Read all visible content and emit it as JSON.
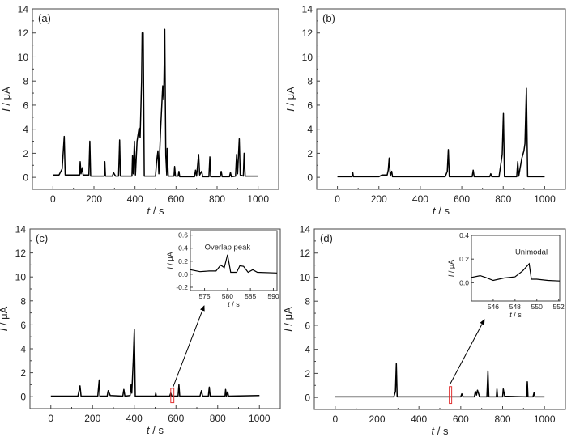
{
  "chart_data": [
    {
      "type": "line",
      "panel_label": "(a)",
      "xlabel_italic": "t",
      "xlabel_unit": " / s",
      "ylabel_italic": "I",
      "ylabel_unit": " / μA",
      "xlim": [
        -100,
        1100
      ],
      "ylim": [
        -1,
        14
      ],
      "xticks": [
        0,
        200,
        400,
        600,
        800,
        1000
      ],
      "yticks": [
        0,
        2,
        4,
        6,
        8,
        10,
        12,
        14
      ],
      "grid": false,
      "series": [
        {
          "color": "#000000",
          "points": [
            [
              0,
              0.2
            ],
            [
              30,
              0.2
            ],
            [
              45,
              0.7
            ],
            [
              55,
              3.4
            ],
            [
              60,
              0.2
            ],
            [
              130,
              0.2
            ],
            [
              133,
              1.3
            ],
            [
              137,
              0.3
            ],
            [
              143,
              0.8
            ],
            [
              147,
              0.2
            ],
            [
              175,
              0.2
            ],
            [
              180,
              3.0
            ],
            [
              184,
              0.1
            ],
            [
              250,
              0.1
            ],
            [
              253,
              1.3
            ],
            [
              256,
              0.1
            ],
            [
              290,
              0.1
            ],
            [
              295,
              0.4
            ],
            [
              305,
              0.1
            ],
            [
              320,
              0.1
            ],
            [
              325,
              3.1
            ],
            [
              329,
              0.1
            ],
            [
              385,
              0.1
            ],
            [
              388,
              1.8
            ],
            [
              392,
              0.3
            ],
            [
              397,
              3.0
            ],
            [
              402,
              0.2
            ],
            [
              410,
              3.0
            ],
            [
              420,
              4.1
            ],
            [
              425,
              3.3
            ],
            [
              432,
              8
            ],
            [
              435,
              12
            ],
            [
              440,
              12
            ],
            [
              445,
              0.1
            ],
            [
              500,
              0.1
            ],
            [
              505,
              1.3
            ],
            [
              512,
              2.2
            ],
            [
              516,
              0.3
            ],
            [
              525,
              4
            ],
            [
              535,
              7.6
            ],
            [
              540,
              6.5
            ],
            [
              545,
              12.3
            ],
            [
              550,
              1.8
            ],
            [
              555,
              0.2
            ],
            [
              557,
              2.4
            ],
            [
              562,
              0.1
            ],
            [
              590,
              0.1
            ],
            [
              593,
              0.9
            ],
            [
              597,
              0.1
            ],
            [
              610,
              0.1
            ],
            [
              614,
              0.5
            ],
            [
              618,
              0.05
            ],
            [
              690,
              0.05
            ],
            [
              695,
              0.6
            ],
            [
              700,
              0.1
            ],
            [
              710,
              1.9
            ],
            [
              715,
              0.2
            ],
            [
              725,
              0.5
            ],
            [
              730,
              0.05
            ],
            [
              760,
              0.05
            ],
            [
              765,
              1.7
            ],
            [
              769,
              0.05
            ],
            [
              815,
              0.05
            ],
            [
              820,
              0.5
            ],
            [
              825,
              0.05
            ],
            [
              860,
              0.05
            ],
            [
              865,
              0.4
            ],
            [
              870,
              0.05
            ],
            [
              890,
              0.1
            ],
            [
              895,
              1.9
            ],
            [
              900,
              0.3
            ],
            [
              908,
              3.2
            ],
            [
              913,
              0.2
            ],
            [
              928,
              0.1
            ],
            [
              932,
              2.0
            ],
            [
              937,
              0.1
            ],
            [
              1000,
              0.1
            ]
          ]
        }
      ]
    },
    {
      "type": "line",
      "panel_label": "(b)",
      "xlabel_italic": "t",
      "xlabel_unit": " / s",
      "ylabel_italic": "I",
      "ylabel_unit": " / μA",
      "xlim": [
        -100,
        1100
      ],
      "ylim": [
        -1,
        14
      ],
      "xticks": [
        0,
        200,
        400,
        600,
        800,
        1000
      ],
      "yticks": [
        0,
        2,
        4,
        6,
        8,
        10,
        12,
        14
      ],
      "grid": false,
      "series": [
        {
          "color": "#000000",
          "points": [
            [
              0,
              0.05
            ],
            [
              70,
              0.05
            ],
            [
              74,
              0.4
            ],
            [
              77,
              0.05
            ],
            [
              200,
              0.05
            ],
            [
              215,
              0.2
            ],
            [
              240,
              0.2
            ],
            [
              245,
              0.6
            ],
            [
              250,
              1.6
            ],
            [
              255,
              0.1
            ],
            [
              262,
              0.5
            ],
            [
              266,
              0.05
            ],
            [
              520,
              0.05
            ],
            [
              530,
              0.5
            ],
            [
              535,
              2.3
            ],
            [
              540,
              0.05
            ],
            [
              650,
              0.05
            ],
            [
              655,
              0.6
            ],
            [
              660,
              0.05
            ],
            [
              735,
              0.05
            ],
            [
              740,
              0.3
            ],
            [
              745,
              0.05
            ],
            [
              780,
              0.05
            ],
            [
              795,
              1.9
            ],
            [
              801,
              5.3
            ],
            [
              806,
              0.05
            ],
            [
              865,
              0.05
            ],
            [
              870,
              1.3
            ],
            [
              875,
              0.1
            ],
            [
              890,
              1.6
            ],
            [
              900,
              2.2
            ],
            [
              905,
              2.8
            ],
            [
              912,
              7.4
            ],
            [
              918,
              0.05
            ],
            [
              1000,
              0.05
            ]
          ]
        }
      ]
    },
    {
      "type": "line",
      "panel_label": "(c)",
      "xlabel_italic": "t",
      "xlabel_unit": " / s",
      "ylabel_italic": "I",
      "ylabel_unit": " / μA",
      "xlim": [
        -100,
        1100
      ],
      "ylim": [
        -1,
        14
      ],
      "xticks": [
        0,
        200,
        400,
        600,
        800,
        1000
      ],
      "yticks": [
        0,
        2,
        4,
        6,
        8,
        10,
        12,
        14
      ],
      "grid": false,
      "series": [
        {
          "color": "#000000",
          "points": [
            [
              0,
              0.05
            ],
            [
              130,
              0.05
            ],
            [
              140,
              0.9
            ],
            [
              145,
              0.05
            ],
            [
              225,
              0.05
            ],
            [
              232,
              1.4
            ],
            [
              235,
              0.05
            ],
            [
              270,
              0.05
            ],
            [
              275,
              0.5
            ],
            [
              285,
              0.1
            ],
            [
              345,
              0.05
            ],
            [
              350,
              0.6
            ],
            [
              355,
              0.05
            ],
            [
              380,
              0.1
            ],
            [
              385,
              1.0
            ],
            [
              388,
              0.3
            ],
            [
              395,
              3
            ],
            [
              400,
              5.6
            ],
            [
              405,
              0.05
            ],
            [
              500,
              0.05
            ],
            [
              503,
              0.3
            ],
            [
              506,
              0.05
            ],
            [
              570,
              0.05
            ],
            [
              575,
              0.3
            ],
            [
              580,
              0.05
            ],
            [
              610,
              0.05
            ],
            [
              614,
              1.0
            ],
            [
              618,
              0.05
            ],
            [
              715,
              0.05
            ],
            [
              722,
              0.5
            ],
            [
              728,
              0.05
            ],
            [
              755,
              0.05
            ],
            [
              760,
              0.8
            ],
            [
              764,
              0.05
            ],
            [
              835,
              0.05
            ],
            [
              838,
              0.6
            ],
            [
              842,
              0.05
            ],
            [
              848,
              0.4
            ],
            [
              852,
              0.05
            ],
            [
              1000,
              0.1
            ]
          ]
        }
      ],
      "highlight_box": {
        "x": [
          575,
          590
        ],
        "y": [
          -0.5,
          0.7
        ],
        "color": "#e03030"
      },
      "inset": {
        "annotation": "Overlap peak",
        "annotation_at": [
          580,
          0.38
        ],
        "xlim": [
          571.9,
          590.8
        ],
        "ylim": [
          -0.25,
          0.67
        ],
        "xticks": [
          575,
          580,
          585,
          590
        ],
        "yticks": [
          -0.2,
          0.0,
          0.2,
          0.4,
          0.6
        ],
        "ytick_labels": [
          "-0.2",
          "0.0",
          "0.2",
          "0.4",
          "0.6"
        ],
        "points": [
          [
            571.9,
            0.07
          ],
          [
            574,
            0.04
          ],
          [
            576,
            0.05
          ],
          [
            577.5,
            0.05
          ],
          [
            578.5,
            0.14
          ],
          [
            579.3,
            0.1
          ],
          [
            580,
            0.3
          ],
          [
            580.7,
            0.03
          ],
          [
            582,
            0.03
          ],
          [
            582.7,
            0.13
          ],
          [
            583.5,
            0.12
          ],
          [
            584.5,
            0.03
          ],
          [
            585.5,
            0.07
          ],
          [
            586.5,
            0.03
          ],
          [
            590.8,
            0.02
          ]
        ]
      }
    },
    {
      "type": "line",
      "panel_label": "(d)",
      "xlabel_italic": "t",
      "xlabel_unit": " / s",
      "ylabel_italic": "I",
      "ylabel_unit": " / μA",
      "xlim": [
        -100,
        1100
      ],
      "ylim": [
        -1,
        14
      ],
      "xticks": [
        0,
        200,
        400,
        600,
        800,
        1000
      ],
      "yticks": [
        0,
        2,
        4,
        6,
        8,
        10,
        12,
        14
      ],
      "grid": false,
      "series": [
        {
          "color": "#000000",
          "points": [
            [
              0,
              0.05
            ],
            [
              280,
              0.05
            ],
            [
              288,
              0.5
            ],
            [
              292,
              2.8
            ],
            [
              296,
              0.05
            ],
            [
              600,
              0.05
            ],
            [
              605,
              0.3
            ],
            [
              612,
              0.05
            ],
            [
              665,
              0.05
            ],
            [
              670,
              0.5
            ],
            [
              675,
              0.2
            ],
            [
              680,
              0.6
            ],
            [
              690,
              0.05
            ],
            [
              725,
              0.05
            ],
            [
              730,
              2.2
            ],
            [
              734,
              0.05
            ],
            [
              770,
              0.05
            ],
            [
              773,
              0.7
            ],
            [
              776,
              0.05
            ],
            [
              800,
              0.05
            ],
            [
              803,
              0.7
            ],
            [
              810,
              0.1
            ],
            [
              915,
              0.05
            ],
            [
              918,
              1.3
            ],
            [
              921,
              0.05
            ],
            [
              945,
              0.05
            ],
            [
              950,
              0.4
            ],
            [
              955,
              0.05
            ],
            [
              1000,
              0.05
            ]
          ]
        }
      ],
      "highlight_box": {
        "x": [
          545,
          552
        ],
        "y": [
          -0.5,
          0.9
        ],
        "color": "#e03030"
      },
      "inset": {
        "annotation": "Unimodal",
        "annotation_at": [
          549.5,
          0.24
        ],
        "xlim": [
          544.0,
          552.1
        ],
        "ylim": [
          -0.155,
          0.4
        ],
        "xticks": [
          546,
          548,
          550,
          552
        ],
        "yticks": [
          0.0,
          0.2,
          0.4
        ],
        "ytick_labels": [
          "0.0",
          "0.2",
          "0.4"
        ],
        "points": [
          [
            544,
            0.045
          ],
          [
            544.8,
            0.06
          ],
          [
            545.3,
            0.045
          ],
          [
            546,
            0.02
          ],
          [
            547,
            0.04
          ],
          [
            548,
            0.05
          ],
          [
            548.7,
            0.1
          ],
          [
            549.3,
            0.16
          ],
          [
            549.5,
            0.03
          ],
          [
            550,
            0.03
          ],
          [
            551,
            0.02
          ],
          [
            552.1,
            0.015
          ]
        ]
      }
    }
  ]
}
